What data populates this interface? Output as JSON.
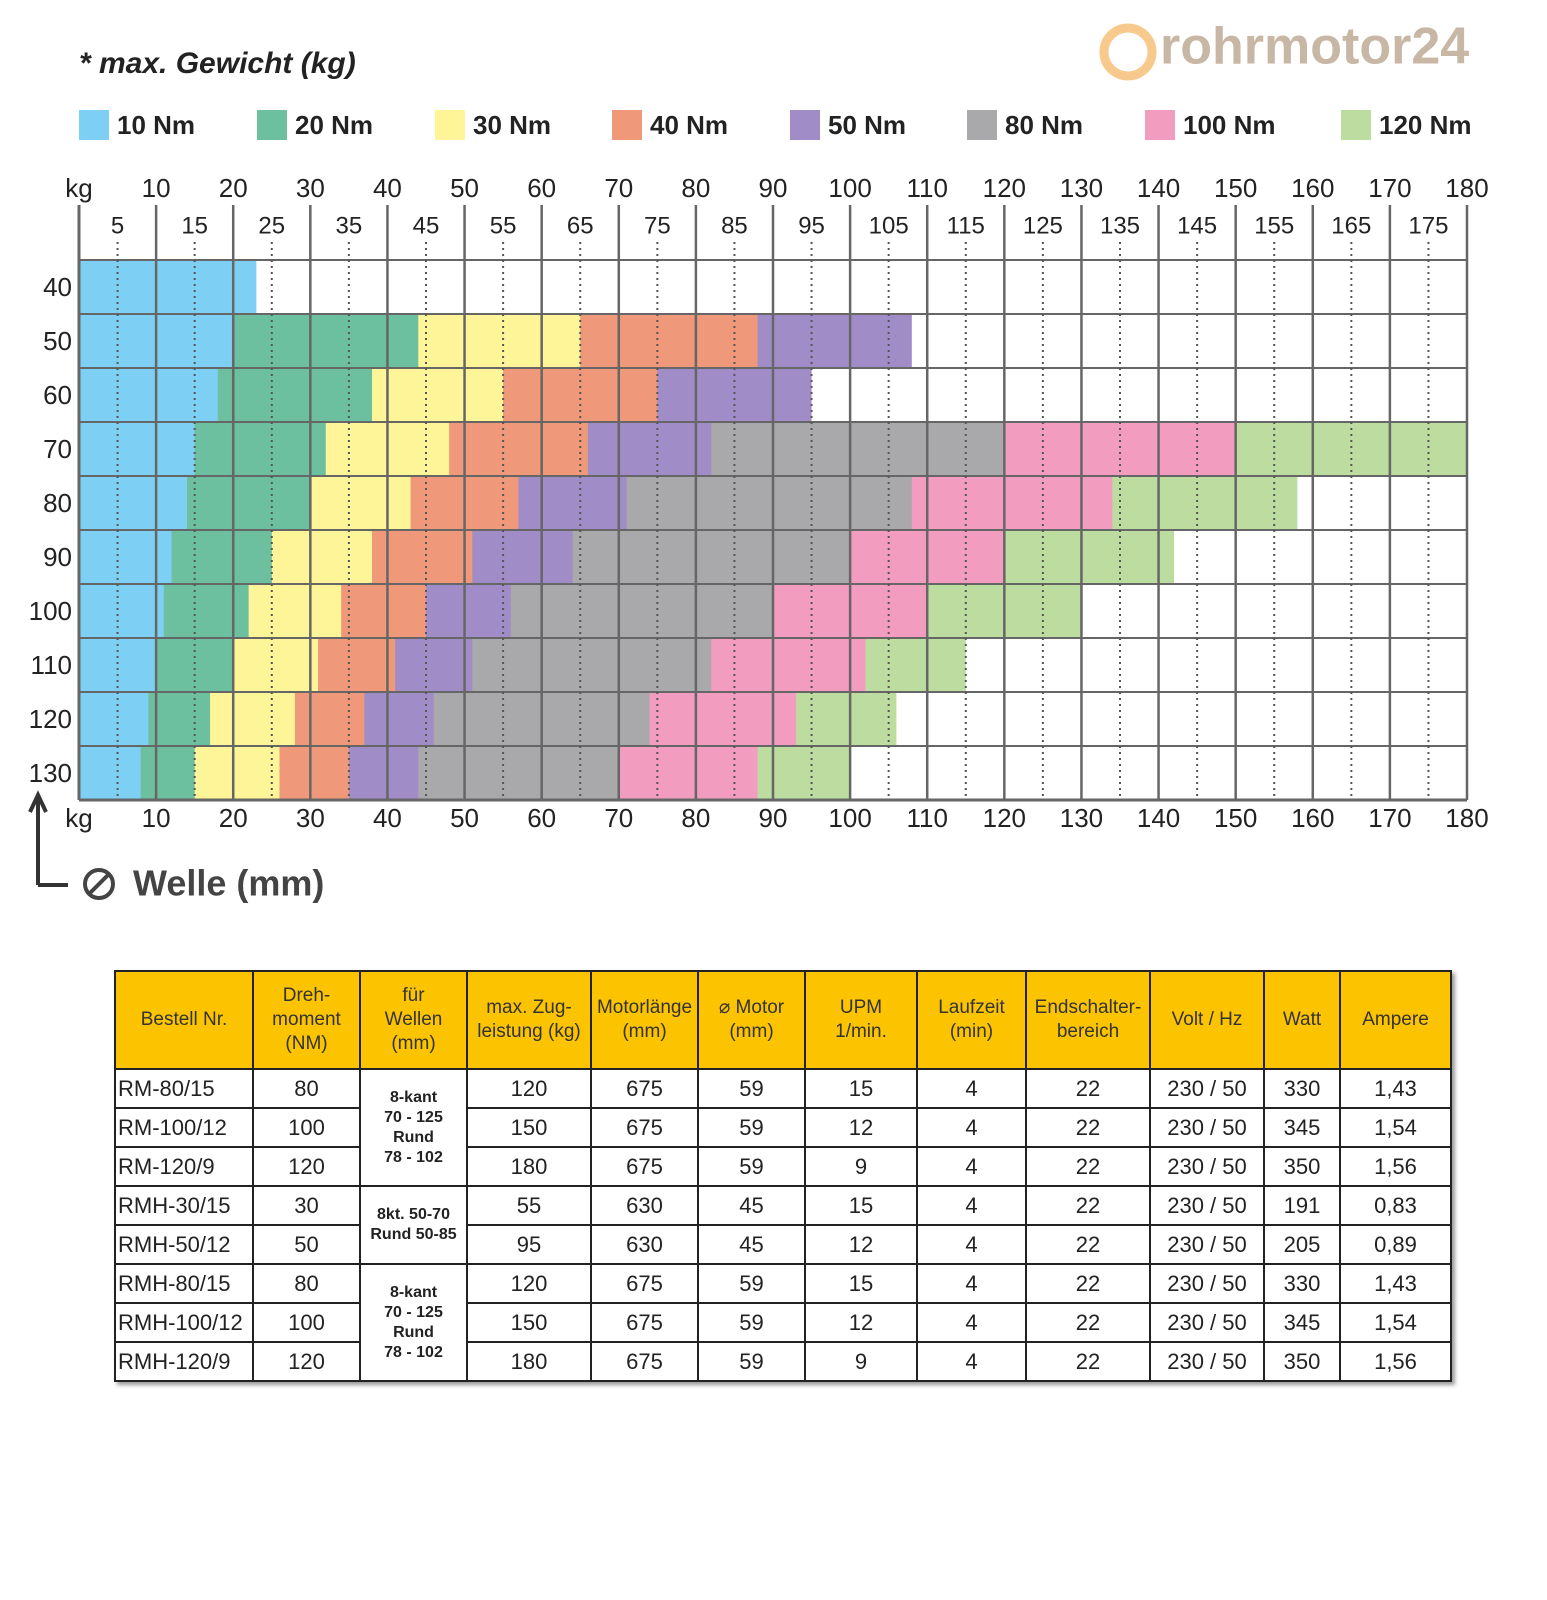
{
  "chart_data": {
    "type": "bar",
    "title": "* max. Gewicht (kg)",
    "logo": "rohrmotor24",
    "y_label": "Welle (mm)",
    "x_unit": "kg",
    "categories": [
      "40",
      "50",
      "60",
      "70",
      "80",
      "90",
      "100",
      "110",
      "120",
      "130"
    ],
    "xlim": [
      0,
      180
    ],
    "xticks": [
      10,
      20,
      30,
      40,
      50,
      60,
      70,
      80,
      90,
      100,
      110,
      120,
      130,
      140,
      150,
      160,
      170,
      180
    ],
    "minor_xticks": [
      5,
      15,
      25,
      35,
      45,
      55,
      65,
      75,
      85,
      95,
      105,
      115,
      125,
      135,
      145,
      155,
      165,
      175
    ],
    "grid": true,
    "series": [
      {
        "name": "10 Nm",
        "color": "#7ecff4",
        "values": [
          23,
          20,
          18,
          15,
          14,
          12,
          11,
          10,
          9,
          8
        ]
      },
      {
        "name": "20 Nm",
        "color": "#6cbf9f",
        "values": [
          null,
          44,
          38,
          32,
          30,
          25,
          22,
          20,
          17,
          15
        ]
      },
      {
        "name": "30 Nm",
        "color": "#fdf597",
        "values": [
          null,
          65,
          55,
          48,
          43,
          38,
          34,
          31,
          28,
          26
        ]
      },
      {
        "name": "40 Nm",
        "color": "#f0987a",
        "values": [
          null,
          88,
          75,
          66,
          57,
          51,
          45,
          41,
          37,
          35
        ]
      },
      {
        "name": "50 Nm",
        "color": "#a08cc6",
        "values": [
          null,
          108,
          95,
          82,
          71,
          64,
          56,
          51,
          46,
          44
        ]
      },
      {
        "name": "80 Nm",
        "color": "#a9a9ab",
        "values": [
          null,
          null,
          null,
          120,
          108,
          100,
          90,
          82,
          74,
          70
        ]
      },
      {
        "name": "100 Nm",
        "color": "#f29cc0",
        "values": [
          null,
          null,
          null,
          150,
          134,
          120,
          110,
          102,
          93,
          88
        ]
      },
      {
        "name": "120 Nm",
        "color": "#bcdca0",
        "values": [
          null,
          null,
          null,
          180,
          158,
          142,
          130,
          115,
          106,
          100
        ]
      }
    ]
  },
  "table": {
    "headers": [
      "Bestell Nr.",
      "Dreh-\nmoment\n(NM)",
      "für\nWellen\n(mm)",
      "max. Zug-\nleistung (kg)",
      "Motorlänge\n(mm)",
      "⌀ Motor\n(mm)",
      "UPM\n1/min.",
      "Laufzeit\n(min)",
      "Endschalter-\nbereich",
      "Volt / Hz",
      "Watt",
      "Ampere"
    ],
    "rows": [
      {
        "cells": [
          "RM-80/15",
          "80",
          "120",
          "675",
          "59",
          "15",
          "4",
          "22",
          "230 / 50",
          "330",
          "1,43"
        ],
        "wellen": "8-kant\n70 - 125\nRund\n78 - 102"
      },
      {
        "cells": [
          "RM-100/12",
          "100",
          "150",
          "675",
          "59",
          "12",
          "4",
          "22",
          "230 / 50",
          "345",
          "1,54"
        ]
      },
      {
        "cells": [
          "RM-120/9",
          "120",
          "180",
          "675",
          "59",
          "9",
          "4",
          "22",
          "230 / 50",
          "350",
          "1,56"
        ]
      },
      {
        "cells": [
          "RMH-30/15",
          "30",
          "55",
          "630",
          "45",
          "15",
          "4",
          "22",
          "230 / 50",
          "191",
          "0,83"
        ],
        "wellen": "8kt. 50-70\nRund 50-85"
      },
      {
        "cells": [
          "RMH-50/12",
          "50",
          "95",
          "630",
          "45",
          "12",
          "4",
          "22",
          "230 / 50",
          "205",
          "0,89"
        ]
      },
      {
        "cells": [
          "RMH-80/15",
          "80",
          "120",
          "675",
          "59",
          "15",
          "4",
          "22",
          "230 / 50",
          "330",
          "1,43"
        ],
        "wellen": "8-kant\n70 - 125\nRund\n78 - 102"
      },
      {
        "cells": [
          "RMH-100/12",
          "100",
          "150",
          "675",
          "59",
          "12",
          "4",
          "22",
          "230 / 50",
          "345",
          "1,54"
        ]
      },
      {
        "cells": [
          "RMH-120/9",
          "120",
          "180",
          "675",
          "59",
          "9",
          "4",
          "22",
          "230 / 50",
          "350",
          "1,56"
        ]
      }
    ]
  }
}
